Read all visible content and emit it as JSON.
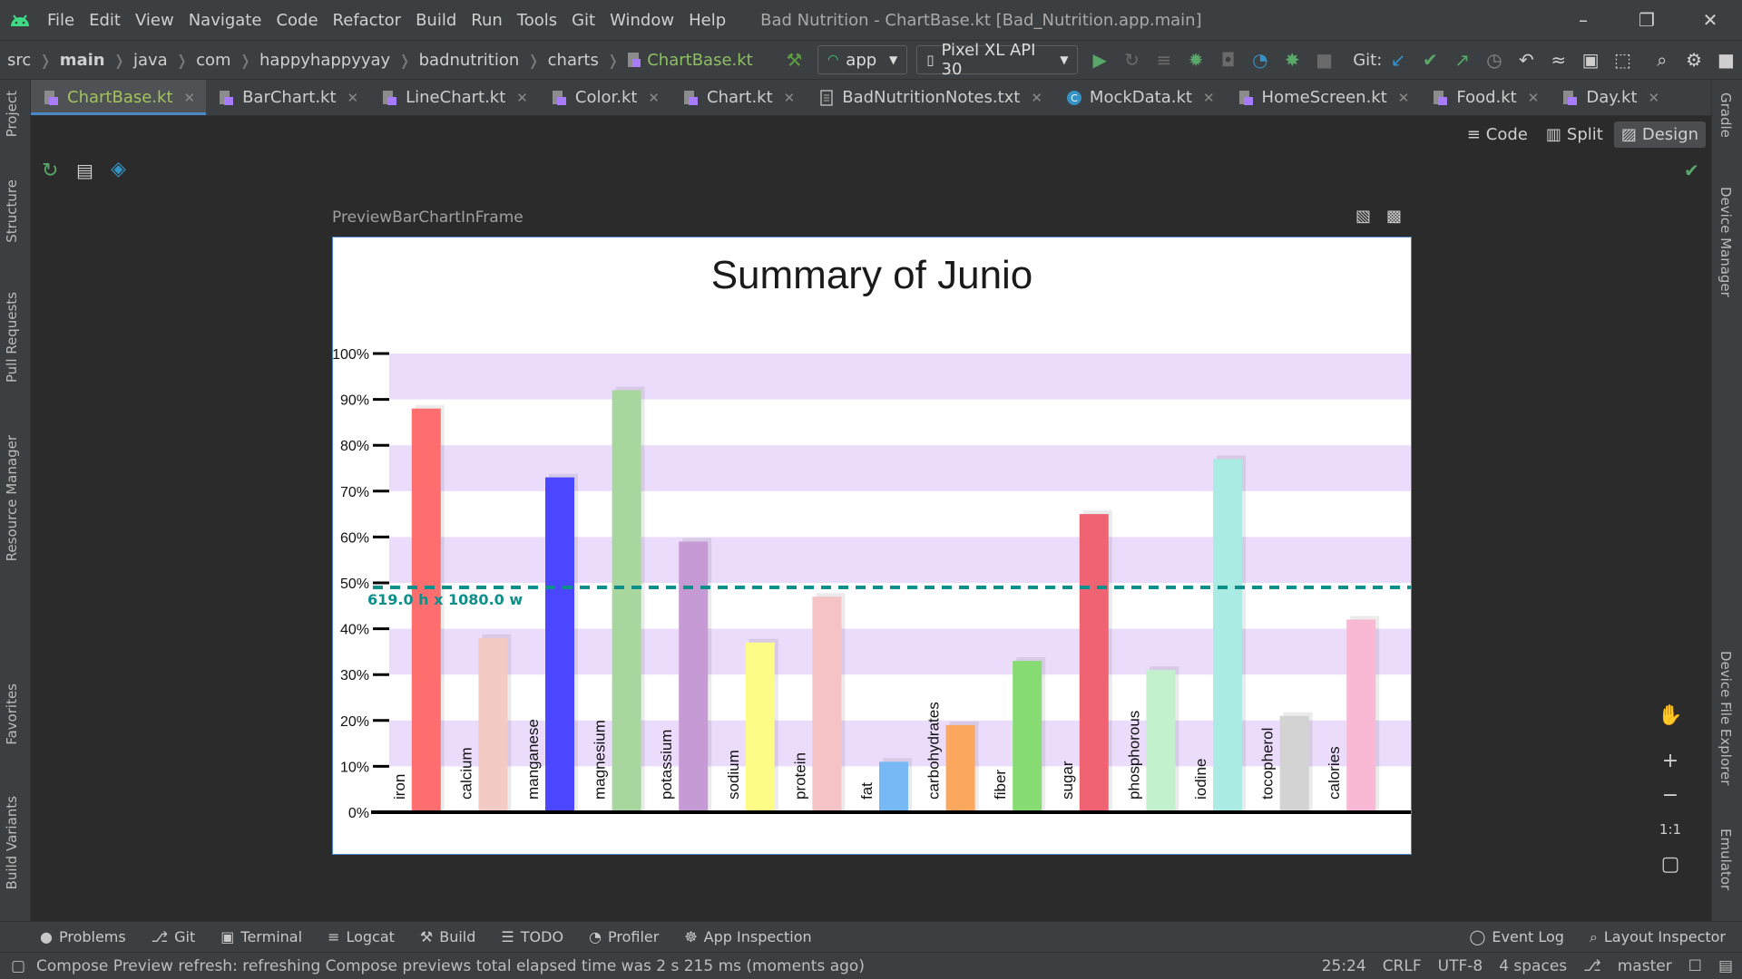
{
  "window": {
    "menu": [
      "File",
      "Edit",
      "View",
      "Navigate",
      "Code",
      "Refactor",
      "Build",
      "Run",
      "Tools",
      "Git",
      "Window",
      "Help"
    ],
    "title": "Bad Nutrition - ChartBase.kt [Bad_Nutrition.app.main]"
  },
  "navbar": {
    "breadcrumbs": [
      "src",
      "main",
      "java",
      "com",
      "happyhappyyay",
      "badnutrition",
      "charts",
      "ChartBase.kt"
    ],
    "run_config": "app",
    "device": "Pixel XL API 30",
    "git_label": "Git:"
  },
  "tabs": [
    "ChartBase.kt",
    "BarChart.kt",
    "LineChart.kt",
    "Color.kt",
    "Chart.kt",
    "BadNutritionNotes.txt",
    "MockData.kt",
    "HomeScreen.kt",
    "Food.kt",
    "Day.kt"
  ],
  "modes": [
    "Code",
    "Split",
    "Design"
  ],
  "left_tools": [
    "Project",
    "Structure",
    "Pull Requests",
    "Resource Manager",
    "Favorites",
    "Build Variants"
  ],
  "right_tools": [
    "Gradle",
    "Device Manager",
    "Device File Explorer",
    "Emulator"
  ],
  "preview": {
    "name": "PreviewBarChartInFrame",
    "dimension_label": "619.0 h x 1080.0 w"
  },
  "chart_data": {
    "type": "bar",
    "title": "Summary of Junio",
    "xlabel": "",
    "ylabel": "",
    "ylim": [
      0,
      100
    ],
    "yticks": [
      "0%",
      "10%",
      "20%",
      "30%",
      "40%",
      "50%",
      "60%",
      "70%",
      "80%",
      "90%",
      "100%"
    ],
    "reference_line": 49,
    "grid": "alternating-bands",
    "categories": [
      "iron",
      "calcium",
      "manganese",
      "magnesium",
      "potassium",
      "sodium",
      "protein",
      "fat",
      "carbohydrates",
      "fiber",
      "sugar",
      "phosphorous",
      "iodine",
      "tocopherol",
      "calories"
    ],
    "values": [
      88,
      38,
      73,
      92,
      59,
      37,
      47,
      11,
      19,
      33,
      65,
      31,
      77,
      21,
      42
    ],
    "colors": [
      "#ff6e6e",
      "#f3cbc4",
      "#4a47ff",
      "#a8d69f",
      "#c69ad4",
      "#fcfc86",
      "#f5c3c6",
      "#77b9f5",
      "#fca75e",
      "#86dc72",
      "#ef6373",
      "#c4f1cd",
      "#aaebe3",
      "#d3d3d3",
      "#f9b8d4"
    ],
    "band_color": "#ebdcfb",
    "reference_color": "#0f8f8a"
  },
  "bottom_tools": [
    "Problems",
    "Git",
    "Terminal",
    "Logcat",
    "Build",
    "TODO",
    "Profiler",
    "App Inspection"
  ],
  "bottom_right_tools": [
    "Event Log",
    "Layout Inspector"
  ],
  "status": {
    "message": "Compose Preview refresh: refreshing Compose previews total elapsed time was 2 s 215 ms (moments ago)",
    "position": "25:24",
    "line_sep": "CRLF",
    "encoding": "UTF-8",
    "indent": "4 spaces",
    "branch": "master"
  }
}
